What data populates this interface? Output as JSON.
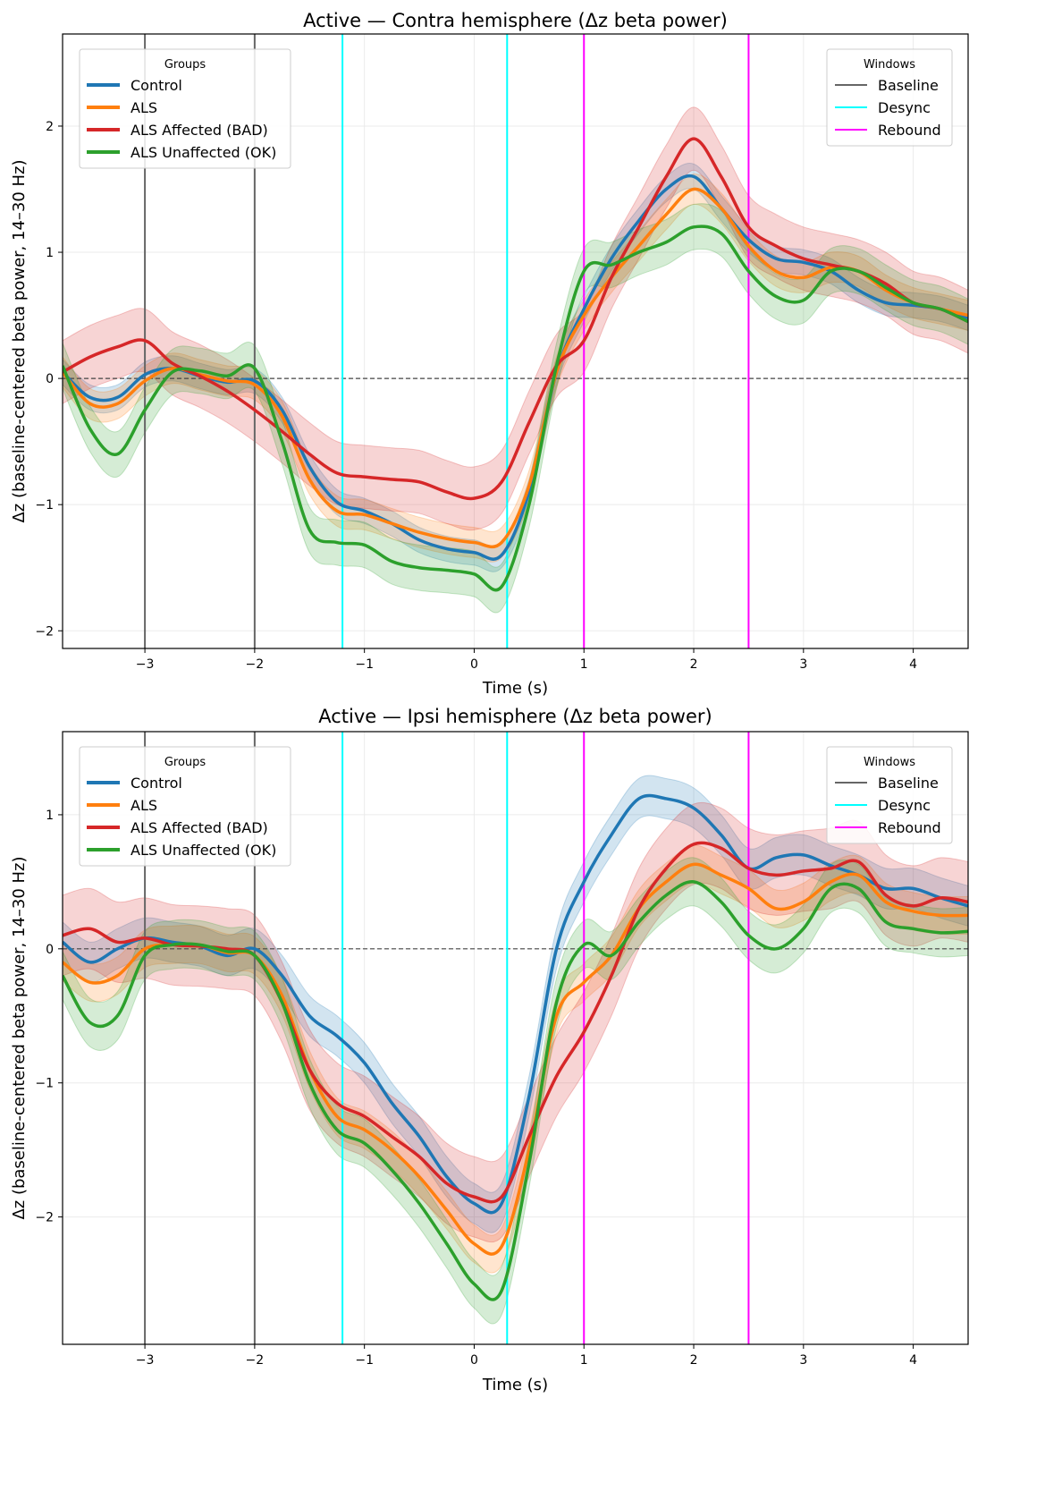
{
  "chart_data": [
    {
      "type": "line",
      "title": "Active — Contra hemisphere (Δz beta power)",
      "xlabel": "Time (s)",
      "ylabel": "Δz (baseline-centered beta power, 14–30 Hz)",
      "xlim": [
        -3.75,
        4.5
      ],
      "ylim": [
        -2.14,
        2.73
      ],
      "xticks": [
        -3,
        -2,
        -1,
        0,
        1,
        2,
        3,
        4
      ],
      "yticks": [
        -2,
        -1,
        0,
        1,
        2
      ],
      "grid": true,
      "zero_line": "dashed",
      "x": [
        -3.75,
        -3.5,
        -3.25,
        -3,
        -2.75,
        -2.5,
        -2.25,
        -2,
        -1.75,
        -1.5,
        -1.25,
        -1,
        -0.75,
        -0.5,
        -0.25,
        0,
        0.25,
        0.5,
        0.75,
        1,
        1.25,
        1.5,
        1.75,
        2,
        2.25,
        2.5,
        2.75,
        3,
        3.25,
        3.5,
        3.75,
        4,
        4.25,
        4.5
      ],
      "series": [
        {
          "name": "Control",
          "color": "#1f77b4",
          "band": 0.1,
          "values": [
            0.05,
            -0.15,
            -0.15,
            0.03,
            0.08,
            0.02,
            -0.03,
            -0.02,
            -0.25,
            -0.7,
            -0.98,
            -1.05,
            -1.15,
            -1.28,
            -1.35,
            -1.38,
            -1.4,
            -0.9,
            0.05,
            0.55,
            0.95,
            1.25,
            1.5,
            1.6,
            1.35,
            1.1,
            0.95,
            0.92,
            0.85,
            0.7,
            0.6,
            0.58,
            0.55,
            0.48
          ]
        },
        {
          "name": "ALS",
          "color": "#ff7f0e",
          "band": 0.12,
          "values": [
            0.05,
            -0.2,
            -0.2,
            -0.02,
            0.08,
            0.03,
            -0.02,
            -0.05,
            -0.3,
            -0.8,
            -1.05,
            -1.08,
            -1.15,
            -1.22,
            -1.27,
            -1.3,
            -1.3,
            -0.85,
            0.05,
            0.5,
            0.8,
            1.05,
            1.3,
            1.5,
            1.35,
            1.05,
            0.85,
            0.8,
            0.88,
            0.85,
            0.7,
            0.6,
            0.55,
            0.5
          ]
        },
        {
          "name": "ALS Affected (BAD)",
          "color": "#d62728",
          "band": 0.25,
          "values": [
            0.05,
            0.17,
            0.25,
            0.3,
            0.12,
            0.02,
            -0.1,
            -0.25,
            -0.42,
            -0.6,
            -0.75,
            -0.78,
            -0.8,
            -0.82,
            -0.9,
            -0.95,
            -0.82,
            -0.35,
            0.1,
            0.3,
            0.8,
            1.2,
            1.6,
            1.9,
            1.6,
            1.2,
            1.05,
            0.95,
            0.9,
            0.85,
            0.75,
            0.6,
            0.55,
            0.45
          ]
        },
        {
          "name": "ALS Unaffected (OK)",
          "color": "#2ca02c",
          "band": 0.18,
          "values": [
            0.1,
            -0.4,
            -0.6,
            -0.25,
            0.05,
            0.06,
            0.02,
            0.08,
            -0.5,
            -1.2,
            -1.3,
            -1.32,
            -1.45,
            -1.5,
            -1.52,
            -1.55,
            -1.65,
            -1.0,
            0.1,
            0.85,
            0.9,
            1.0,
            1.08,
            1.2,
            1.15,
            0.85,
            0.65,
            0.62,
            0.85,
            0.85,
            0.72,
            0.6,
            0.55,
            0.45
          ]
        }
      ],
      "windows": [
        {
          "name": "Baseline",
          "color": "#666666",
          "x": [
            -3,
            -2
          ]
        },
        {
          "name": "Desync",
          "color": "#00ffff",
          "x": [
            -1.2,
            0.3
          ]
        },
        {
          "name": "Rebound",
          "color": "#ff00ff",
          "x": [
            1.0,
            2.5
          ]
        }
      ],
      "legend_groups_title": "Groups",
      "legend_windows_title": "Windows",
      "legend_placement": [
        "top-left",
        "top-right"
      ]
    },
    {
      "type": "line",
      "title": "Active — Ipsi hemisphere (Δz beta power)",
      "xlabel": "Time (s)",
      "ylabel": "Δz (baseline-centered beta power, 14–30 Hz)",
      "xlim": [
        -3.75,
        4.5
      ],
      "ylim": [
        -2.95,
        1.62
      ],
      "xticks": [
        -3,
        -2,
        -1,
        0,
        1,
        2,
        3,
        4
      ],
      "yticks": [
        -2,
        -1,
        0,
        1
      ],
      "grid": true,
      "zero_line": "dashed",
      "x": [
        -3.75,
        -3.5,
        -3.25,
        -3,
        -2.75,
        -2.5,
        -2.25,
        -2,
        -1.75,
        -1.5,
        -1.25,
        -1,
        -0.75,
        -0.5,
        -0.25,
        0,
        0.25,
        0.5,
        0.75,
        1,
        1.25,
        1.5,
        1.75,
        2,
        2.25,
        2.5,
        2.75,
        3,
        3.25,
        3.5,
        3.75,
        4,
        4.25,
        4.5
      ],
      "series": [
        {
          "name": "Control",
          "color": "#1f77b4",
          "band": 0.15,
          "values": [
            0.05,
            -0.1,
            0.0,
            0.08,
            0.05,
            0.02,
            -0.05,
            0.0,
            -0.2,
            -0.5,
            -0.65,
            -0.85,
            -1.15,
            -1.4,
            -1.7,
            -1.9,
            -1.9,
            -1.1,
            0.0,
            0.5,
            0.85,
            1.12,
            1.12,
            1.05,
            0.85,
            0.6,
            0.68,
            0.7,
            0.62,
            0.55,
            0.45,
            0.45,
            0.38,
            0.32
          ]
        },
        {
          "name": "ALS",
          "color": "#ff7f0e",
          "band": 0.14,
          "values": [
            -0.1,
            -0.25,
            -0.2,
            0.0,
            0.03,
            0.03,
            -0.03,
            -0.05,
            -0.35,
            -0.9,
            -1.25,
            -1.35,
            -1.5,
            -1.7,
            -1.95,
            -2.2,
            -2.22,
            -1.5,
            -0.5,
            -0.25,
            -0.05,
            0.3,
            0.5,
            0.63,
            0.55,
            0.45,
            0.3,
            0.35,
            0.5,
            0.55,
            0.35,
            0.28,
            0.25,
            0.25
          ]
        },
        {
          "name": "ALS Affected (BAD)",
          "color": "#d62728",
          "band": 0.3,
          "values": [
            0.1,
            0.15,
            0.05,
            0.08,
            0.03,
            0.02,
            0.0,
            -0.05,
            -0.4,
            -0.9,
            -1.15,
            -1.25,
            -1.4,
            -1.55,
            -1.75,
            -1.85,
            -1.85,
            -1.4,
            -0.95,
            -0.62,
            -0.2,
            0.3,
            0.6,
            0.78,
            0.75,
            0.6,
            0.55,
            0.58,
            0.6,
            0.65,
            0.4,
            0.32,
            0.38,
            0.35
          ]
        },
        {
          "name": "ALS Unaffected (OK)",
          "color": "#2ca02c",
          "band": 0.18,
          "values": [
            -0.2,
            -0.55,
            -0.5,
            -0.05,
            0.03,
            0.03,
            -0.02,
            -0.05,
            -0.4,
            -1.0,
            -1.35,
            -1.45,
            -1.65,
            -1.9,
            -2.2,
            -2.5,
            -2.55,
            -1.6,
            -0.4,
            0.03,
            -0.05,
            0.2,
            0.4,
            0.5,
            0.35,
            0.1,
            0.0,
            0.15,
            0.45,
            0.45,
            0.2,
            0.15,
            0.12,
            0.13
          ]
        }
      ],
      "windows": [
        {
          "name": "Baseline",
          "color": "#666666",
          "x": [
            -3,
            -2
          ]
        },
        {
          "name": "Desync",
          "color": "#00ffff",
          "x": [
            -1.2,
            0.3
          ]
        },
        {
          "name": "Rebound",
          "color": "#ff00ff",
          "x": [
            1.0,
            2.5
          ]
        }
      ],
      "legend_groups_title": "Groups",
      "legend_windows_title": "Windows",
      "legend_placement": [
        "top-left",
        "top-right"
      ]
    }
  ]
}
